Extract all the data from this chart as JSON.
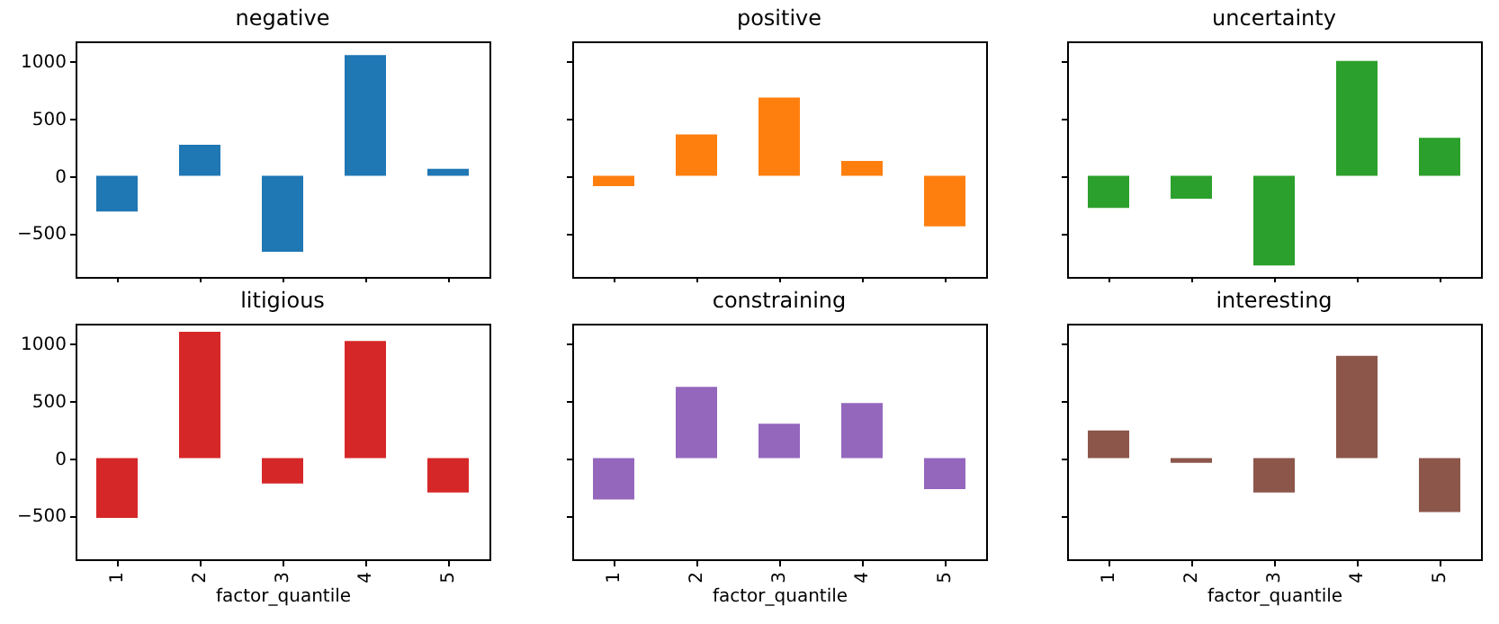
{
  "chart_data": [
    {
      "type": "bar",
      "title": "negative",
      "categories": [
        "1",
        "2",
        "3",
        "4",
        "5"
      ],
      "values": [
        -310,
        270,
        -660,
        1050,
        60
      ],
      "color": "#1f77b4",
      "ylim": [
        -880,
        1170
      ],
      "yticks": [
        -500,
        0,
        500,
        1000
      ],
      "tick_labels": "y"
    },
    {
      "type": "bar",
      "title": "positive",
      "categories": [
        "1",
        "2",
        "3",
        "4",
        "5"
      ],
      "values": [
        -90,
        360,
        680,
        130,
        -440
      ],
      "color": "#ff7f0e",
      "ylim": [
        -880,
        1170
      ],
      "yticks": [
        -500,
        0,
        500,
        1000
      ],
      "tick_labels": false
    },
    {
      "type": "bar",
      "title": "uncertainty",
      "categories": [
        "1",
        "2",
        "3",
        "4",
        "5"
      ],
      "values": [
        -280,
        -200,
        -780,
        1000,
        330
      ],
      "color": "#2ca02c",
      "ylim": [
        -880,
        1170
      ],
      "yticks": [
        -500,
        0,
        500,
        1000
      ],
      "tick_labels": false
    },
    {
      "type": "bar",
      "title": "litigious",
      "xlabel": "factor_quantile",
      "categories": [
        "1",
        "2",
        "3",
        "4",
        "5"
      ],
      "values": [
        -520,
        1100,
        -220,
        1020,
        -300
      ],
      "color": "#d62728",
      "ylim": [
        -880,
        1170
      ],
      "yticks": [
        -500,
        0,
        500,
        1000
      ]
    },
    {
      "type": "bar",
      "title": "constraining",
      "xlabel": "factor_quantile",
      "categories": [
        "1",
        "2",
        "3",
        "4",
        "5"
      ],
      "values": [
        -360,
        620,
        300,
        480,
        -270
      ],
      "color": "#9467bd",
      "ylim": [
        -880,
        1170
      ],
      "yticks": [
        -500,
        0,
        500,
        1000
      ],
      "tick_labels": "x"
    },
    {
      "type": "bar",
      "title": "interesting",
      "xlabel": "factor_quantile",
      "categories": [
        "1",
        "2",
        "3",
        "4",
        "5"
      ],
      "values": [
        240,
        -40,
        -300,
        890,
        -470
      ],
      "color": "#8c564b",
      "ylim": [
        -880,
        1170
      ],
      "yticks": [
        -500,
        0,
        500,
        1000
      ],
      "tick_labels": "x"
    }
  ]
}
